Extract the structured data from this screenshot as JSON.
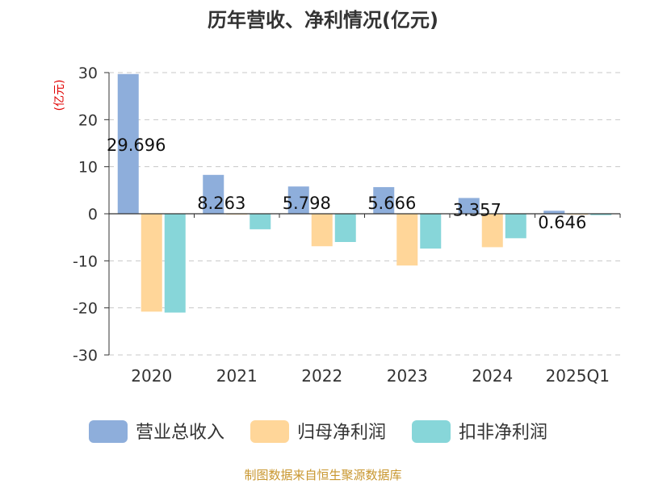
{
  "chart_data": {
    "type": "bar",
    "title": "历年营收、净利情况(亿元)",
    "ylabel": "(亿元)",
    "categories": [
      "2020",
      "2021",
      "2022",
      "2023",
      "2024",
      "2025Q1"
    ],
    "ylim": [
      -30,
      30
    ],
    "yticks": [
      30,
      20,
      10,
      0,
      -10,
      -20,
      -30
    ],
    "grid": true,
    "legend_position": "bottom",
    "series": [
      {
        "name": "营业总收入",
        "color": "#8eaedb",
        "values": [
          29.696,
          8.263,
          5.798,
          5.666,
          3.357,
          0.646
        ]
      },
      {
        "name": "归母净利润",
        "color": "#ffd699",
        "values": [
          -20.8,
          -0.1,
          -6.9,
          -11.0,
          -7.1,
          -0.2
        ]
      },
      {
        "name": "扣非净利润",
        "color": "#87d6d9",
        "values": [
          -21.0,
          -3.3,
          -6.0,
          -7.4,
          -5.2,
          -0.3
        ]
      }
    ],
    "data_labels": [
      "29.696",
      "8.263",
      "5.798",
      "5.666",
      "3.357",
      "0.646"
    ],
    "source": "制图数据来自恒生聚源数据库"
  }
}
